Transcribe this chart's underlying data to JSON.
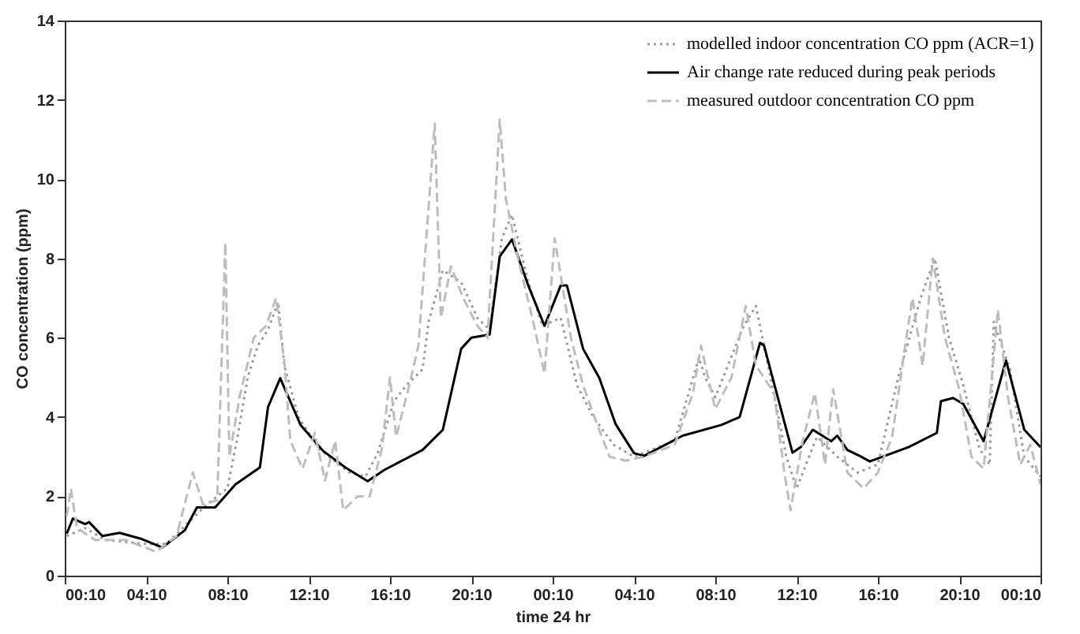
{
  "chart_data": {
    "type": "line",
    "xlabel": "time 24 hr",
    "ylabel": "CO concentration (ppm)",
    "xlim": [
      "--01-01T00:10",
      "--01-03T00:10"
    ],
    "ylim": [
      0,
      14
    ],
    "xticks": [
      {
        "value": "--01-01T00:10",
        "label": "00:10"
      },
      {
        "value": "--01-01T04:10",
        "label": "04:10"
      },
      {
        "value": "--01-01T08:10",
        "label": "08:10"
      },
      {
        "value": "--01-01T12:10",
        "label": "12:10"
      },
      {
        "value": "--01-01T16:10",
        "label": "16:10"
      },
      {
        "value": "--01-01T20:10",
        "label": "20:10"
      },
      {
        "value": "--01-02T00:10",
        "label": "00:10"
      },
      {
        "value": "--01-02T04:10",
        "label": "04:10"
      },
      {
        "value": "--01-02T08:10",
        "label": "08:10"
      },
      {
        "value": "--01-02T12:10",
        "label": "12:10"
      },
      {
        "value": "--01-02T16:10",
        "label": "16:10"
      },
      {
        "value": "--01-02T20:10",
        "label": "20:10"
      },
      {
        "value": "--01-03T00:10",
        "label": "00:10"
      }
    ],
    "yticks": [
      0,
      2,
      4,
      6,
      8,
      10,
      12,
      14
    ],
    "legend": "top right",
    "grid": false,
    "series": [
      {
        "name": "modelled indoor concentration CO ppm (ACR=1)",
        "color": "#9a9a9a",
        "line_style": "dotted",
        "x": [
          "--01-01T00:16",
          "--01-01T01:10",
          "--01-01T02:10",
          "--01-01T04:10",
          "--01-01T05:10",
          "--01-01T06:10",
          "--01-01T07:10",
          "--01-01T08:10",
          "--01-01T08:40",
          "--01-01T09:10",
          "--01-01T09:40",
          "--01-01T10:10",
          "--01-01T10:40",
          "--01-01T10:58",
          "--01-01T11:40",
          "--01-01T12:40",
          "--01-01T14:10",
          "--01-01T14:58",
          "--01-01T15:34",
          "--01-01T16:22",
          "--01-01T16:58",
          "--01-01T17:46",
          "--01-01T18:04",
          "--01-01T18:46",
          "--01-01T19:40",
          "--01-01T20:28",
          "--01-01T21:04",
          "--01-01T21:40",
          "--01-01T22:10",
          "--01-01T22:58",
          "--01-01T23:40",
          "--01-02T00:34",
          "--01-02T01:22",
          "--01-02T02:10",
          "--01-02T03:10",
          "--01-02T04:10",
          "--01-02T06:10",
          "--01-02T07:22",
          "--01-02T07:40",
          "--01-02T08:10",
          "--01-02T09:34",
          "--01-02T10:10",
          "--01-02T10:34",
          "--01-02T11:40",
          "--01-02T12:10",
          "--01-02T13:10",
          "--01-02T14:10",
          "--01-02T15:10",
          "--01-02T16:10",
          "--01-02T17:10",
          "--01-02T18:16",
          "--01-02T18:58",
          "--01-02T19:40",
          "--01-02T20:22",
          "--01-02T21:10",
          "--01-02T21:40",
          "--01-02T21:52",
          "--01-02T22:40",
          "--01-02T23:22",
          "--01-03T00:10"
        ],
        "values": [
          1.0,
          1.2,
          0.9,
          0.8,
          0.8,
          1.3,
          1.8,
          2.2,
          3.5,
          5.0,
          5.8,
          6.2,
          6.9,
          5.3,
          4.0,
          3.2,
          2.6,
          2.5,
          3.1,
          4.4,
          4.8,
          5.2,
          6.4,
          7.7,
          7.4,
          6.5,
          6.2,
          8.5,
          9.1,
          7.4,
          6.3,
          6.5,
          4.8,
          4.0,
          3.3,
          3.0,
          3.4,
          5.5,
          5.0,
          4.5,
          6.3,
          6.8,
          5.8,
          3.0,
          2.2,
          3.5,
          3.0,
          2.6,
          2.8,
          5.0,
          7.0,
          8.0,
          6.0,
          4.8,
          3.2,
          2.8,
          6.4,
          5.2,
          3.0,
          2.5
        ]
      },
      {
        "name": "Air change rate reduced during peak periods",
        "color": "#000000",
        "line_style": "solid",
        "x": [
          "--01-01T00:16",
          "--01-01T00:34",
          "--01-01T01:10",
          "--01-01T01:22",
          "--01-01T02:01",
          "--01-01T02:52",
          "--01-01T03:55",
          "--01-01T04:58",
          "--01-01T06:04",
          "--01-01T06:40",
          "--01-01T07:34",
          "--01-01T08:34",
          "--01-01T09:46",
          "--01-01T10:10",
          "--01-01T10:46",
          "--01-01T11:46",
          "--01-01T12:52",
          "--01-01T13:58",
          "--01-01T15:04",
          "--01-01T15:52",
          "--01-01T17:46",
          "--01-01T18:46",
          "--01-01T19:40",
          "--01-01T20:10",
          "--01-01T21:04",
          "--01-01T21:34",
          "--01-01T22:10",
          "--01-01T22:58",
          "--01-01T23:46",
          "--01-02T00:34",
          "--01-02T00:52",
          "--01-02T01:40",
          "--01-02T02:28",
          "--01-02T03:16",
          "--01-02T04:10",
          "--01-02T04:40",
          "--01-02T06:34",
          "--01-02T08:28",
          "--01-02T09:22",
          "--01-02T10:22",
          "--01-02T10:34",
          "--01-02T11:58",
          "--01-02T12:22",
          "--01-02T12:58",
          "--01-02T13:52",
          "--01-02T14:10",
          "--01-02T14:40",
          "--01-02T15:16",
          "--01-02T15:46",
          "--01-02T17:40",
          "--01-02T19:04",
          "--01-02T19:16",
          "--01-02T19:52",
          "--01-02T20:22",
          "--01-02T21:22",
          "--01-02T22:28",
          "--01-02T23:22",
          "--01-03T00:10"
        ],
        "values": [
          1.06,
          1.44,
          1.3,
          1.35,
          1.0,
          1.08,
          0.93,
          0.71,
          1.14,
          1.72,
          1.72,
          2.3,
          2.73,
          4.25,
          4.98,
          3.8,
          3.15,
          2.73,
          2.38,
          2.66,
          3.17,
          3.68,
          5.72,
          6.0,
          6.08,
          8.05,
          8.48,
          7.32,
          6.3,
          7.32,
          7.32,
          5.72,
          4.98,
          3.82,
          3.09,
          3.02,
          3.53,
          3.8,
          4.0,
          5.87,
          5.8,
          3.1,
          3.24,
          3.68,
          3.39,
          3.53,
          3.17,
          3.02,
          2.88,
          3.24,
          3.6,
          4.4,
          4.48,
          4.33,
          3.39,
          5.43,
          3.68,
          3.24
        ]
      },
      {
        "name": "measured outdoor concentration CO ppm",
        "color": "#bdbdbd",
        "line_style": "dashed",
        "x": [
          "--01-01T00:16",
          "--01-01T00:28",
          "--01-01T00:46",
          "--01-01T01:40",
          "--01-01T03:10",
          "--01-01T04:40",
          "--01-01T05:40",
          "--01-01T06:28",
          "--01-01T06:58",
          "--01-01T07:40",
          "--01-01T08:04",
          "--01-01T08:16",
          "--01-01T08:46",
          "--01-01T09:28",
          "--01-01T10:04",
          "--01-01T10:34",
          "--01-01T10:58",
          "--01-01T11:16",
          "--01-01T11:52",
          "--01-01T12:28",
          "--01-01T12:58",
          "--01-01T13:28",
          "--01-01T13:52",
          "--01-01T14:34",
          "--01-01T15:10",
          "--01-01T15:46",
          "--01-01T16:10",
          "--01-01T16:28",
          "--01-01T17:04",
          "--01-01T17:34",
          "--01-01T18:22",
          "--01-01T18:40",
          "--01-01T19:10",
          "--01-01T19:46",
          "--01-01T20:28",
          "--01-01T20:58",
          "--01-01T21:34",
          "--01-01T21:52",
          "--01-01T22:28",
          "--01-01T23:10",
          "--01-01T23:46",
          "--01-02T00:16",
          "--01-02T01:04",
          "--01-02T01:40",
          "--01-02T02:22",
          "--01-02T02:58",
          "--01-02T03:46",
          "--01-02T04:40",
          "--01-02T06:10",
          "--01-02T07:04",
          "--01-02T07:28",
          "--01-02T08:10",
          "--01-02T08:58",
          "--01-02T09:40",
          "--01-02T10:10",
          "--01-02T11:04",
          "--01-02T11:34",
          "--01-02T11:52",
          "--01-02T12:28",
          "--01-02T13:04",
          "--01-02T13:34",
          "--01-02T13:58",
          "--01-02T14:40",
          "--01-02T15:28",
          "--01-02T16:10",
          "--01-02T16:52",
          "--01-02T17:34",
          "--01-02T17:52",
          "--01-02T18:22",
          "--01-02T18:52",
          "--01-02T19:28",
          "--01-02T20:10",
          "--01-02T20:46",
          "--01-02T21:22",
          "--01-02T22:04",
          "--01-02T22:34",
          "--01-02T23:10",
          "--01-02T23:40",
          "--01-03T00:10"
        ],
        "values": [
          1.5,
          2.2,
          1.2,
          0.9,
          0.9,
          0.6,
          1.0,
          2.6,
          1.8,
          1.9,
          8.4,
          3.0,
          4.5,
          6.0,
          6.3,
          7.0,
          5.4,
          3.4,
          2.7,
          3.6,
          2.4,
          3.4,
          1.65,
          2.0,
          2.0,
          3.2,
          5.0,
          3.5,
          4.7,
          5.8,
          11.4,
          6.5,
          7.8,
          7.0,
          6.3,
          6.0,
          11.5,
          9.5,
          8.0,
          6.5,
          5.1,
          8.5,
          6.0,
          4.8,
          3.8,
          3.0,
          2.9,
          3.0,
          3.3,
          4.6,
          5.8,
          4.2,
          5.0,
          6.8,
          5.3,
          4.6,
          2.6,
          1.65,
          3.4,
          4.6,
          2.8,
          4.7,
          2.6,
          2.2,
          2.6,
          3.5,
          6.0,
          7.0,
          5.3,
          8.0,
          6.0,
          4.7,
          3.0,
          2.7,
          6.7,
          4.5,
          2.8,
          3.3,
          2.3
        ]
      }
    ]
  }
}
